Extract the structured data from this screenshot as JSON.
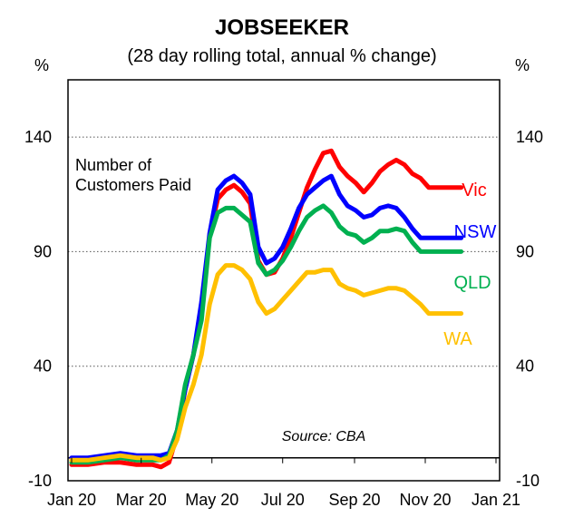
{
  "chart_data": {
    "type": "line",
    "title": "JOBSEEKER",
    "subtitle": "(28 day rolling total, annual % change)",
    "ylabel_left": "%",
    "ylabel_right": "%",
    "ylim": [
      -10,
      165
    ],
    "yticks": [
      -10,
      40,
      90,
      140
    ],
    "yticks_right": [
      -10,
      40,
      90,
      140
    ],
    "x_range": [
      "2020-01-01",
      "2021-01-01"
    ],
    "x_ticks": [
      {
        "date": "2020-01-01",
        "label": "Jan 20"
      },
      {
        "date": "2020-03-01",
        "label": "Mar 20"
      },
      {
        "date": "2020-05-01",
        "label": "May 20"
      },
      {
        "date": "2020-07-01",
        "label": "Jul 20"
      },
      {
        "date": "2020-09-01",
        "label": "Sep 20"
      },
      {
        "date": "2020-11-01",
        "label": "Nov 20"
      },
      {
        "date": "2021-01-01",
        "label": "Jan 21"
      }
    ],
    "grid": "horizontal dotted",
    "annotation": "Number of Customers Paid",
    "source": "Source: CBA",
    "x": [
      "2020-01-01",
      "2020-01-15",
      "2020-01-29",
      "2020-02-12",
      "2020-02-26",
      "2020-03-11",
      "2020-03-18",
      "2020-03-25",
      "2020-04-01",
      "2020-04-08",
      "2020-04-15",
      "2020-04-22",
      "2020-04-29",
      "2020-05-06",
      "2020-05-13",
      "2020-05-20",
      "2020-05-27",
      "2020-06-03",
      "2020-06-10",
      "2020-06-17",
      "2020-06-24",
      "2020-07-01",
      "2020-07-08",
      "2020-07-15",
      "2020-07-22",
      "2020-07-29",
      "2020-08-05",
      "2020-08-12",
      "2020-08-19",
      "2020-08-26",
      "2020-09-02",
      "2020-09-09",
      "2020-09-16",
      "2020-09-23",
      "2020-09-30",
      "2020-10-07",
      "2020-10-14",
      "2020-10-21",
      "2020-10-28",
      "2020-11-04",
      "2020-11-11",
      "2020-11-18",
      "2020-11-25",
      "2020-12-02"
    ],
    "series": [
      {
        "name": "Vic",
        "color": "#ff0000",
        "values": [
          -3,
          -3,
          -2,
          -2,
          -3,
          -3,
          -4,
          -2,
          10,
          30,
          45,
          65,
          97,
          113,
          117,
          119,
          116,
          111,
          86,
          80,
          81,
          87,
          96,
          107,
          118,
          126,
          133,
          134,
          127,
          123,
          120,
          116,
          120,
          125,
          128,
          130,
          128,
          124,
          122,
          118,
          118,
          118,
          118,
          118
        ]
      },
      {
        "name": "NSW",
        "color": "#0000ff",
        "values": [
          0,
          0,
          1,
          2,
          1,
          1,
          1,
          2,
          12,
          30,
          45,
          68,
          98,
          117,
          121,
          123,
          120,
          115,
          92,
          85,
          87,
          92,
          100,
          109,
          115,
          118,
          121,
          123,
          115,
          110,
          108,
          105,
          106,
          109,
          110,
          109,
          105,
          100,
          96,
          96,
          96,
          96,
          96,
          96
        ]
      },
      {
        "name": "QLD",
        "color": "#00b050",
        "values": [
          -2,
          -2,
          -1,
          0,
          -1,
          -1,
          -1,
          1,
          12,
          32,
          45,
          60,
          96,
          107,
          109,
          109,
          106,
          103,
          85,
          80,
          82,
          86,
          92,
          99,
          105,
          108,
          110,
          107,
          101,
          98,
          97,
          94,
          96,
          99,
          99,
          100,
          99,
          94,
          90,
          90,
          90,
          90,
          90,
          90
        ]
      },
      {
        "name": "WA",
        "color": "#ffc000",
        "values": [
          -1,
          -1,
          0,
          1,
          0,
          0,
          -1,
          0,
          8,
          22,
          32,
          45,
          67,
          80,
          84,
          84,
          82,
          78,
          68,
          63,
          65,
          69,
          73,
          77,
          81,
          81,
          82,
          82,
          76,
          74,
          73,
          71,
          72,
          73,
          74,
          74,
          73,
          70,
          67,
          63,
          63,
          63,
          63,
          63
        ]
      }
    ]
  }
}
